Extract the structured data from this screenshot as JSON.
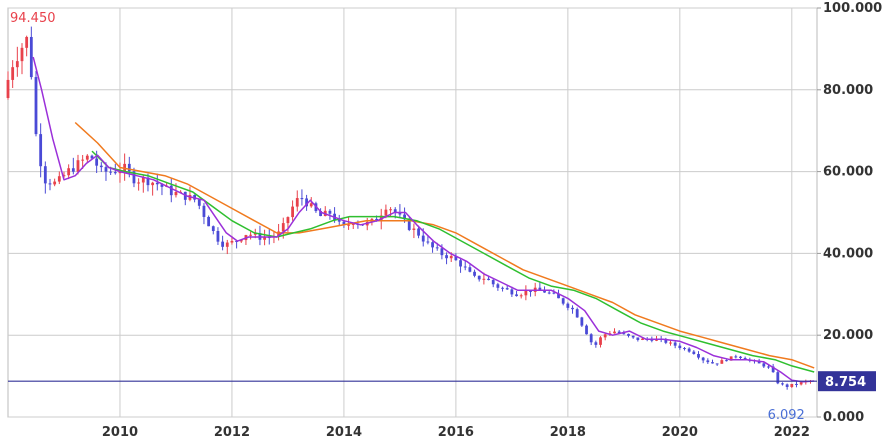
{
  "chart_data": {
    "type": "candlestick",
    "x_range": [
      2008.0,
      2022.45
    ],
    "ylim": [
      0,
      100
    ],
    "y_ticks": [
      {
        "value": 0,
        "label": "0.000"
      },
      {
        "value": 20,
        "label": "20.000"
      },
      {
        "value": 40,
        "label": "40.000"
      },
      {
        "value": 60,
        "label": "60.000"
      },
      {
        "value": 80,
        "label": "80.000"
      },
      {
        "value": 100,
        "label": "100.000"
      }
    ],
    "x_ticks": [
      {
        "value": 2010,
        "label": "2010"
      },
      {
        "value": 2012,
        "label": "2012"
      },
      {
        "value": 2014,
        "label": "2014"
      },
      {
        "value": 2016,
        "label": "2016"
      },
      {
        "value": 2018,
        "label": "2018"
      },
      {
        "value": 2020,
        "label": "2020"
      },
      {
        "value": 2022,
        "label": "2022"
      }
    ],
    "grid": true,
    "max_annotation": {
      "label": "94.450",
      "x": 2008.5,
      "y": 94.45
    },
    "min_annotation": {
      "label": "6.092",
      "x": 2021.9,
      "y": 6.092
    },
    "current_price": {
      "label": "8.754",
      "value": 8.754
    },
    "colors": {
      "up": "#e8414b",
      "down": "#4a4ad6",
      "ma_short": "#9b30d9",
      "ma_mid": "#2fbf2f",
      "ma_long": "#f07a1e",
      "current_line": "#333399",
      "grid": "#cccccc",
      "max_label": "#e8414b",
      "min_label": "#4a6fd6"
    },
    "ma_short": [
      [
        2008.45,
        88
      ],
      [
        2008.6,
        80
      ],
      [
        2008.8,
        68
      ],
      [
        2009.0,
        58
      ],
      [
        2009.2,
        59
      ],
      [
        2009.4,
        62
      ],
      [
        2009.6,
        64
      ],
      [
        2009.8,
        61
      ],
      [
        2010.0,
        60
      ],
      [
        2010.3,
        59
      ],
      [
        2010.6,
        58
      ],
      [
        2010.9,
        56
      ],
      [
        2011.2,
        54
      ],
      [
        2011.5,
        53
      ],
      [
        2011.7,
        49
      ],
      [
        2011.9,
        45
      ],
      [
        2012.1,
        43
      ],
      [
        2012.3,
        44
      ],
      [
        2012.6,
        44
      ],
      [
        2012.8,
        44
      ],
      [
        2013.0,
        46
      ],
      [
        2013.2,
        50
      ],
      [
        2013.4,
        53
      ],
      [
        2013.6,
        50
      ],
      [
        2013.8,
        49
      ],
      [
        2014.0,
        48
      ],
      [
        2014.3,
        47
      ],
      [
        2014.6,
        48
      ],
      [
        2014.9,
        50
      ],
      [
        2015.1,
        50
      ],
      [
        2015.3,
        47
      ],
      [
        2015.6,
        43
      ],
      [
        2015.9,
        40
      ],
      [
        2016.2,
        38
      ],
      [
        2016.5,
        35
      ],
      [
        2016.8,
        33
      ],
      [
        2017.1,
        31
      ],
      [
        2017.4,
        31
      ],
      [
        2017.7,
        31
      ],
      [
        2018.0,
        29
      ],
      [
        2018.3,
        26
      ],
      [
        2018.55,
        21
      ],
      [
        2018.8,
        20
      ],
      [
        2019.1,
        21
      ],
      [
        2019.4,
        19
      ],
      [
        2019.7,
        19
      ],
      [
        2020.0,
        18.5
      ],
      [
        2020.3,
        17
      ],
      [
        2020.6,
        15
      ],
      [
        2020.9,
        14
      ],
      [
        2021.2,
        14
      ],
      [
        2021.5,
        13.5
      ],
      [
        2021.8,
        11
      ],
      [
        2022.0,
        9
      ],
      [
        2022.2,
        8.6
      ],
      [
        2022.4,
        8.8
      ]
    ],
    "ma_mid": [
      [
        2009.5,
        65
      ],
      [
        2009.8,
        61
      ],
      [
        2010.1,
        60
      ],
      [
        2010.5,
        59
      ],
      [
        2010.9,
        57
      ],
      [
        2011.3,
        55
      ],
      [
        2011.7,
        51
      ],
      [
        2012.0,
        48
      ],
      [
        2012.4,
        45
      ],
      [
        2012.8,
        44
      ],
      [
        2013.1,
        45
      ],
      [
        2013.4,
        46
      ],
      [
        2013.8,
        48
      ],
      [
        2014.1,
        49
      ],
      [
        2014.5,
        49
      ],
      [
        2014.9,
        49
      ],
      [
        2015.3,
        48
      ],
      [
        2015.7,
        46
      ],
      [
        2016.1,
        43
      ],
      [
        2016.5,
        40
      ],
      [
        2016.9,
        37
      ],
      [
        2017.3,
        34
      ],
      [
        2017.7,
        32
      ],
      [
        2018.1,
        31
      ],
      [
        2018.5,
        29
      ],
      [
        2018.9,
        26
      ],
      [
        2019.3,
        23
      ],
      [
        2019.7,
        21
      ],
      [
        2020.1,
        19.5
      ],
      [
        2020.5,
        18
      ],
      [
        2020.9,
        16.5
      ],
      [
        2021.3,
        15
      ],
      [
        2021.7,
        14
      ],
      [
        2022.0,
        12.5
      ],
      [
        2022.4,
        11
      ]
    ],
    "ma_long": [
      [
        2009.2,
        72
      ],
      [
        2009.6,
        67
      ],
      [
        2010.0,
        61
      ],
      [
        2010.4,
        60
      ],
      [
        2010.8,
        59
      ],
      [
        2011.2,
        57
      ],
      [
        2011.6,
        54
      ],
      [
        2012.0,
        51
      ],
      [
        2012.4,
        48
      ],
      [
        2012.8,
        45
      ],
      [
        2013.2,
        45
      ],
      [
        2013.6,
        46
      ],
      [
        2014.0,
        47
      ],
      [
        2014.4,
        48
      ],
      [
        2014.8,
        48
      ],
      [
        2015.2,
        48
      ],
      [
        2015.6,
        47
      ],
      [
        2016.0,
        45
      ],
      [
        2016.4,
        42
      ],
      [
        2016.8,
        39
      ],
      [
        2017.2,
        36
      ],
      [
        2017.6,
        34
      ],
      [
        2018.0,
        32
      ],
      [
        2018.4,
        30
      ],
      [
        2018.8,
        28
      ],
      [
        2019.2,
        25
      ],
      [
        2019.6,
        23
      ],
      [
        2020.0,
        21
      ],
      [
        2020.4,
        19.5
      ],
      [
        2020.8,
        18
      ],
      [
        2021.2,
        16.5
      ],
      [
        2021.6,
        15
      ],
      [
        2022.0,
        14
      ],
      [
        2022.4,
        12
      ]
    ],
    "candle_path": [
      [
        2008.0,
        78
      ],
      [
        2008.15,
        86
      ],
      [
        2008.35,
        91
      ],
      [
        2008.45,
        93
      ],
      [
        2008.6,
        66
      ],
      [
        2008.75,
        58
      ],
      [
        2008.95,
        57
      ],
      [
        2009.15,
        60
      ],
      [
        2009.35,
        62
      ],
      [
        2009.55,
        64
      ],
      [
        2009.75,
        60
      ],
      [
        2009.95,
        60
      ],
      [
        2010.15,
        61
      ],
      [
        2010.35,
        58
      ],
      [
        2010.55,
        58
      ],
      [
        2010.75,
        57
      ],
      [
        2011.0,
        55
      ],
      [
        2011.25,
        54
      ],
      [
        2011.45,
        53
      ],
      [
        2011.6,
        49
      ],
      [
        2011.8,
        44
      ],
      [
        2011.95,
        42
      ],
      [
        2012.15,
        43
      ],
      [
        2012.35,
        45
      ],
      [
        2012.55,
        44
      ],
      [
        2012.75,
        44
      ],
      [
        2012.95,
        45
      ],
      [
        2013.15,
        51
      ],
      [
        2013.3,
        54
      ],
      [
        2013.45,
        52
      ],
      [
        2013.65,
        49
      ],
      [
        2013.85,
        50
      ],
      [
        2014.05,
        46
      ],
      [
        2014.25,
        48
      ],
      [
        2014.45,
        47
      ],
      [
        2014.65,
        48
      ],
      [
        2014.85,
        52
      ],
      [
        2015.0,
        50
      ],
      [
        2015.2,
        47
      ],
      [
        2015.4,
        45
      ],
      [
        2015.6,
        42
      ],
      [
        2015.8,
        40
      ],
      [
        2016.0,
        39
      ],
      [
        2016.2,
        37
      ],
      [
        2016.4,
        34
      ],
      [
        2016.6,
        34
      ],
      [
        2016.8,
        32
      ],
      [
        2017.0,
        31
      ],
      [
        2017.2,
        30
      ],
      [
        2017.4,
        31
      ],
      [
        2017.6,
        31
      ],
      [
        2017.8,
        30
      ],
      [
        2018.0,
        28
      ],
      [
        2018.2,
        26
      ],
      [
        2018.4,
        21
      ],
      [
        2018.55,
        17
      ],
      [
        2018.7,
        20
      ],
      [
        2018.9,
        21
      ],
      [
        2019.1,
        20
      ],
      [
        2019.3,
        19
      ],
      [
        2019.5,
        19
      ],
      [
        2019.7,
        19
      ],
      [
        2019.9,
        18
      ],
      [
        2020.1,
        17
      ],
      [
        2020.3,
        16
      ],
      [
        2020.5,
        14
      ],
      [
        2020.7,
        13
      ],
      [
        2020.9,
        14
      ],
      [
        2021.1,
        15
      ],
      [
        2021.3,
        14
      ],
      [
        2021.5,
        13
      ],
      [
        2021.7,
        12
      ],
      [
        2021.85,
        8
      ],
      [
        2022.0,
        7.5
      ],
      [
        2022.2,
        8.2
      ],
      [
        2022.4,
        8.8
      ]
    ]
  }
}
